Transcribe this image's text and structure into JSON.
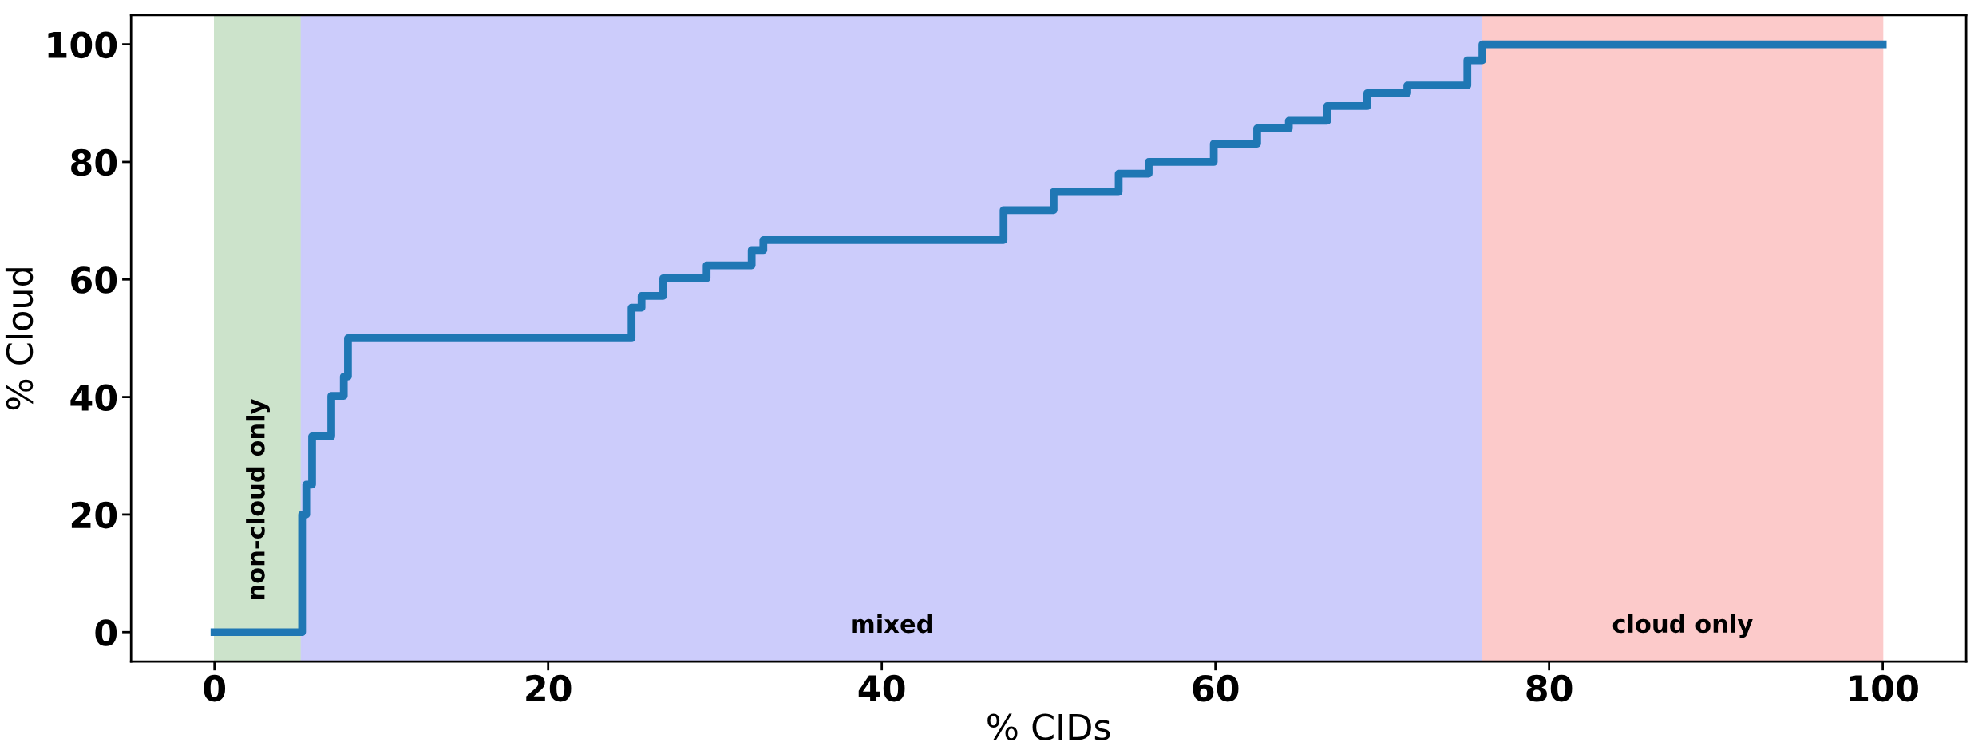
{
  "chart_data": {
    "type": "step",
    "xlabel": "% CIDs",
    "ylabel": "% Cloud",
    "series": [
      {
        "color": "#1f77b4",
        "x": [
          0,
          5.2,
          5.25,
          5.5,
          5.85,
          6.95,
          7.0,
          7.7,
          7.75,
          8.0,
          24.75,
          25.0,
          25.6,
          26.7,
          26.9,
          28.9,
          29.5,
          30.6,
          32.2,
          32.9,
          45.2,
          47.3,
          50.3,
          53.0,
          54.2,
          56.0,
          58.3,
          59.9,
          61.4,
          62.5,
          64.4,
          66.7,
          69.1,
          71.5,
          75.1,
          76.0,
          100
        ],
        "values": [
          0,
          0,
          20,
          25.1,
          33.3,
          33.3,
          40.2,
          40.2,
          43.5,
          50,
          50,
          55.2,
          57.2,
          57.2,
          60.2,
          60.2,
          62.4,
          62.4,
          65,
          66.7,
          66.7,
          71.8,
          74.9,
          74.9,
          78,
          80,
          80,
          83.1,
          83.1,
          85.7,
          87,
          89.5,
          91.7,
          93,
          97.3,
          100,
          100
        ]
      }
    ],
    "bands": [
      {
        "axis": "x",
        "from": 0,
        "to": 5.2,
        "label": "non-cloud only",
        "color": "#cce3cb"
      },
      {
        "axis": "x",
        "from": 5.2,
        "to": 76.0,
        "label": "mixed",
        "color": "#ccccfb"
      },
      {
        "axis": "x",
        "from": 76.0,
        "to": 100,
        "label": "cloud only",
        "color": "#fccaca"
      }
    ],
    "xlim": [
      -5,
      105
    ],
    "ylim": [
      -5,
      105
    ],
    "xticks": [
      0,
      20,
      40,
      60,
      80,
      100
    ],
    "yticks": [
      0,
      20,
      40,
      60,
      80,
      100
    ],
    "line_style": "solid",
    "marker": "none",
    "grid": false,
    "legend": false
  }
}
